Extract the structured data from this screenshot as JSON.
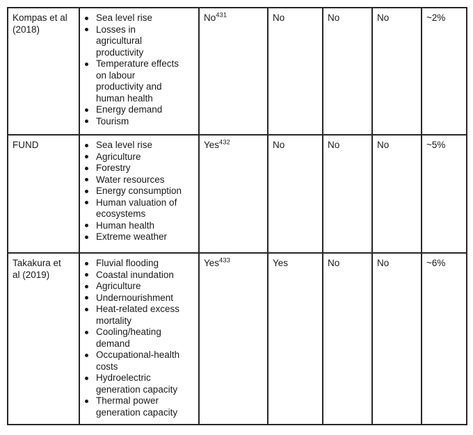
{
  "colors": {
    "border": "#262626",
    "text": "#1a1a1a",
    "background": "#ffffff"
  },
  "table": {
    "rows": [
      {
        "study": "Kompas et al\n(2018)",
        "impacts": [
          "Sea level rise",
          "Losses in\nagricultural\nproductivity",
          "Temperature effects\non labour\nproductivity and\nhuman health",
          "Energy demand",
          "Tourism"
        ],
        "value1": {
          "text": "No",
          "footnote": "431"
        },
        "value2": "No",
        "value3": "No",
        "value4": "No",
        "percent": "~2%"
      },
      {
        "study": "FUND",
        "impacts": [
          "Sea level rise",
          "Agriculture",
          "Forestry",
          "Water resources",
          "Energy consumption",
          "Human valuation of\necosystems",
          "Human health",
          "Extreme weather"
        ],
        "value1": {
          "text": "Yes",
          "footnote": "432"
        },
        "value2": "No",
        "value3": "No",
        "value4": "No",
        "percent": "~5%"
      },
      {
        "study": "Takakura et\nal (2019)",
        "impacts": [
          "Fluvial flooding",
          "Coastal inundation",
          "Agriculture",
          "Undernourishment",
          "Heat-related excess\nmortality",
          "Cooling/heating\ndemand",
          "Occupational-health\ncosts",
          "Hydroelectric\ngeneration capacity",
          "Thermal power\ngeneration capacity"
        ],
        "value1": {
          "text": "Yes",
          "footnote": "433"
        },
        "value2": "Yes",
        "value3": "No",
        "value4": "No",
        "percent": "~6%"
      }
    ]
  }
}
